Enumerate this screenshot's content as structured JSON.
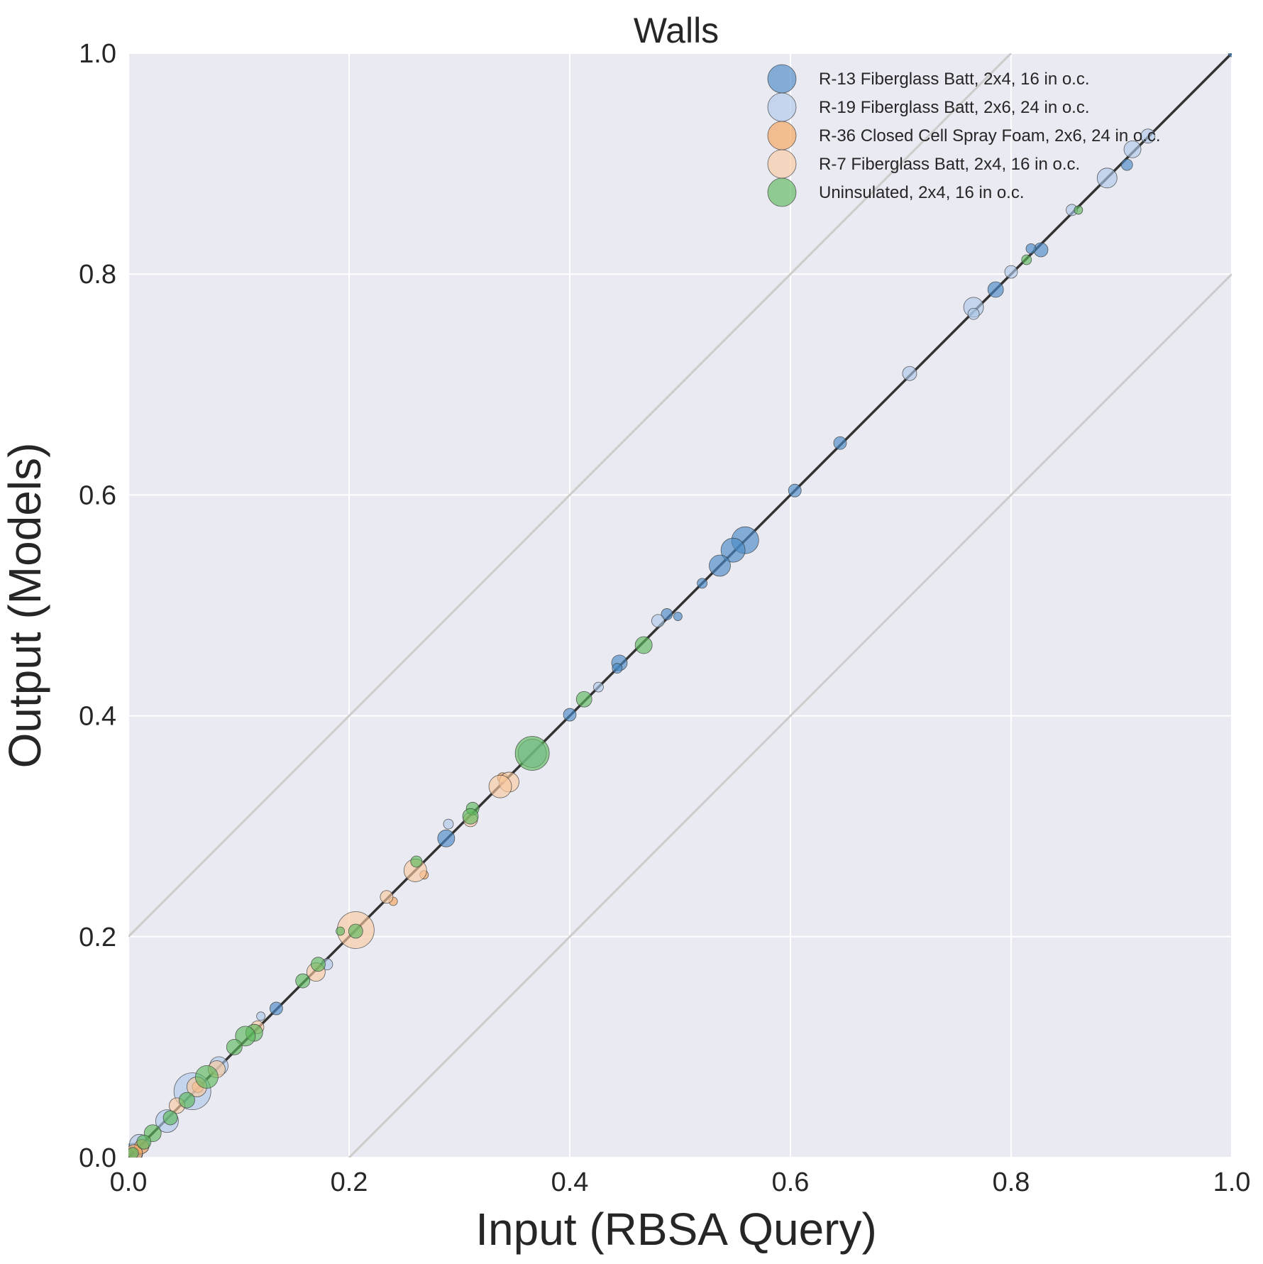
{
  "chart_data": {
    "type": "scatter",
    "title": "Walls",
    "xlabel": "Input (RBSA Query)",
    "ylabel": "Output (Models)",
    "xlim": [
      0.0,
      1.0
    ],
    "ylim": [
      0.0,
      1.0
    ],
    "xticks": [
      "0.0",
      "0.2",
      "0.4",
      "0.6",
      "0.8",
      "1.0"
    ],
    "yticks": [
      "0.0",
      "0.2",
      "0.4",
      "0.6",
      "0.8",
      "1.0"
    ],
    "grid": true,
    "legend_position": "top-right",
    "reference_lines": [
      {
        "kind": "identity",
        "color": "#333333",
        "points": [
          [
            0.0,
            0.0
          ],
          [
            1.0,
            1.0
          ]
        ]
      },
      {
        "kind": "band-upper",
        "color": "#cccccc",
        "points": [
          [
            0.0,
            0.2
          ],
          [
            0.8,
            1.0
          ]
        ]
      },
      {
        "kind": "band-lower",
        "color": "#cccccc",
        "points": [
          [
            0.2,
            0.0
          ],
          [
            1.0,
            0.8
          ]
        ]
      }
    ],
    "series": [
      {
        "name": "R-13 Fiberglass Batt, 2x4, 16 in o.c.",
        "color": "#4a8bc4",
        "points": [
          {
            "x": 1.0,
            "y": 1.0,
            "s": 5
          },
          {
            "x": 0.905,
            "y": 0.899,
            "s": 8
          },
          {
            "x": 0.827,
            "y": 0.822,
            "s": 10
          },
          {
            "x": 0.818,
            "y": 0.823,
            "s": 7
          },
          {
            "x": 0.786,
            "y": 0.786,
            "s": 11
          },
          {
            "x": 0.645,
            "y": 0.647,
            "s": 9
          },
          {
            "x": 0.604,
            "y": 0.604,
            "s": 9
          },
          {
            "x": 0.559,
            "y": 0.559,
            "s": 19
          },
          {
            "x": 0.548,
            "y": 0.55,
            "s": 17
          },
          {
            "x": 0.536,
            "y": 0.536,
            "s": 15
          },
          {
            "x": 0.52,
            "y": 0.52,
            "s": 7
          },
          {
            "x": 0.488,
            "y": 0.492,
            "s": 8
          },
          {
            "x": 0.498,
            "y": 0.49,
            "s": 6
          },
          {
            "x": 0.445,
            "y": 0.448,
            "s": 11
          },
          {
            "x": 0.443,
            "y": 0.443,
            "s": 7
          },
          {
            "x": 0.4,
            "y": 0.401,
            "s": 9
          },
          {
            "x": 0.288,
            "y": 0.289,
            "s": 12
          },
          {
            "x": 0.134,
            "y": 0.135,
            "s": 9
          },
          {
            "x": 0.004,
            "y": 0.004,
            "s": 14
          }
        ]
      },
      {
        "name": "R-19 Fiberglass Batt, 2x6, 24 in o.c.",
        "color": "#aec7e8",
        "points": [
          {
            "x": 0.924,
            "y": 0.925,
            "s": 10
          },
          {
            "x": 0.91,
            "y": 0.913,
            "s": 12
          },
          {
            "x": 0.887,
            "y": 0.887,
            "s": 14
          },
          {
            "x": 0.855,
            "y": 0.858,
            "s": 8
          },
          {
            "x": 0.8,
            "y": 0.802,
            "s": 9
          },
          {
            "x": 0.766,
            "y": 0.77,
            "s": 14
          },
          {
            "x": 0.766,
            "y": 0.764,
            "s": 8
          },
          {
            "x": 0.708,
            "y": 0.71,
            "s": 10
          },
          {
            "x": 0.48,
            "y": 0.486,
            "s": 9
          },
          {
            "x": 0.426,
            "y": 0.426,
            "s": 7
          },
          {
            "x": 0.366,
            "y": 0.366,
            "s": 20
          },
          {
            "x": 0.29,
            "y": 0.302,
            "s": 7
          },
          {
            "x": 0.18,
            "y": 0.175,
            "s": 8
          },
          {
            "x": 0.12,
            "y": 0.128,
            "s": 6
          },
          {
            "x": 0.082,
            "y": 0.083,
            "s": 13
          },
          {
            "x": 0.058,
            "y": 0.06,
            "s": 26
          },
          {
            "x": 0.035,
            "y": 0.033,
            "s": 16
          },
          {
            "x": 0.01,
            "y": 0.012,
            "s": 14
          }
        ]
      },
      {
        "name": "R-36 Closed Cell Spray Foam, 2x6, 24 in o.c.",
        "color": "#f5a55a",
        "points": [
          {
            "x": 0.339,
            "y": 0.344,
            "s": 7
          },
          {
            "x": 0.268,
            "y": 0.256,
            "s": 6
          },
          {
            "x": 0.24,
            "y": 0.232,
            "s": 6
          },
          {
            "x": 0.063,
            "y": 0.064,
            "s": 8
          },
          {
            "x": 0.012,
            "y": 0.01,
            "s": 10
          },
          {
            "x": 0.005,
            "y": 0.004,
            "s": 12
          }
        ]
      },
      {
        "name": "R-7 Fiberglass Batt, 2x4, 16 in o.c.",
        "color": "#f9c9a0",
        "points": [
          {
            "x": 0.345,
            "y": 0.34,
            "s": 14
          },
          {
            "x": 0.337,
            "y": 0.336,
            "s": 16
          },
          {
            "x": 0.31,
            "y": 0.306,
            "s": 10
          },
          {
            "x": 0.26,
            "y": 0.26,
            "s": 16
          },
          {
            "x": 0.234,
            "y": 0.236,
            "s": 9
          },
          {
            "x": 0.206,
            "y": 0.206,
            "s": 26
          },
          {
            "x": 0.17,
            "y": 0.168,
            "s": 13
          },
          {
            "x": 0.117,
            "y": 0.118,
            "s": 9
          },
          {
            "x": 0.08,
            "y": 0.08,
            "s": 12
          },
          {
            "x": 0.062,
            "y": 0.064,
            "s": 14
          },
          {
            "x": 0.044,
            "y": 0.047,
            "s": 11
          }
        ]
      },
      {
        "name": "Uninsulated, 2x4, 16 in o.c.",
        "color": "#5cb85c",
        "points": [
          {
            "x": 0.861,
            "y": 0.858,
            "s": 6
          },
          {
            "x": 0.814,
            "y": 0.813,
            "s": 7
          },
          {
            "x": 0.467,
            "y": 0.464,
            "s": 12
          },
          {
            "x": 0.413,
            "y": 0.415,
            "s": 11
          },
          {
            "x": 0.366,
            "y": 0.366,
            "s": 24
          },
          {
            "x": 0.312,
            "y": 0.316,
            "s": 9
          },
          {
            "x": 0.31,
            "y": 0.309,
            "s": 11
          },
          {
            "x": 0.261,
            "y": 0.268,
            "s": 8
          },
          {
            "x": 0.206,
            "y": 0.205,
            "s": 10
          },
          {
            "x": 0.192,
            "y": 0.205,
            "s": 6
          },
          {
            "x": 0.172,
            "y": 0.175,
            "s": 10
          },
          {
            "x": 0.158,
            "y": 0.16,
            "s": 10
          },
          {
            "x": 0.114,
            "y": 0.113,
            "s": 12
          },
          {
            "x": 0.106,
            "y": 0.11,
            "s": 14
          },
          {
            "x": 0.096,
            "y": 0.1,
            "s": 11
          },
          {
            "x": 0.071,
            "y": 0.073,
            "s": 16
          },
          {
            "x": 0.053,
            "y": 0.052,
            "s": 11
          },
          {
            "x": 0.038,
            "y": 0.036,
            "s": 10
          },
          {
            "x": 0.022,
            "y": 0.022,
            "s": 12
          },
          {
            "x": 0.014,
            "y": 0.014,
            "s": 10
          },
          {
            "x": 0.004,
            "y": 0.004,
            "s": 8
          }
        ]
      }
    ]
  }
}
